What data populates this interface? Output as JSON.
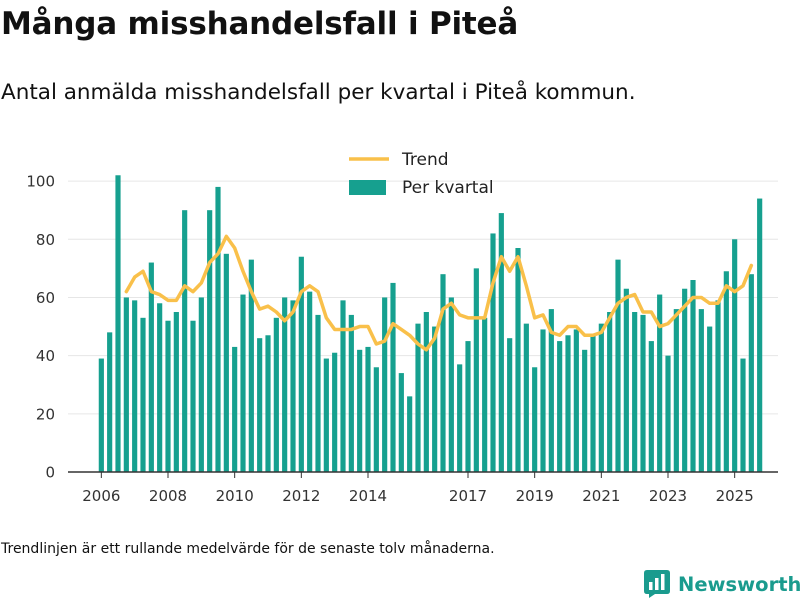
{
  "header": {
    "title": "Många misshandelsfall i Piteå",
    "subtitle": "Antal anmälda misshandelsfall per kvartal i Piteå kommun."
  },
  "footer": {
    "note": "Trendlinjen är ett rullande medelvärde för de senaste tolv månaderna.",
    "brand": "Newsworthy",
    "brand_icon": "newsworthy-logo-icon"
  },
  "colors": {
    "bars": "#16a08f",
    "trend": "#f9c04a",
    "grid": "#e6e6e6",
    "axis": "#333333",
    "brand": "#1a9b8e"
  },
  "chart_data": {
    "type": "bar",
    "x_start": 2006.0,
    "x_step": 0.25,
    "xlim": [
      2005.0,
      2026.3
    ],
    "ylim": [
      0,
      110
    ],
    "yticks": [
      0,
      20,
      40,
      60,
      80,
      100
    ],
    "xticks": [
      {
        "label": "2006",
        "value": 2006.0
      },
      {
        "label": "2008",
        "value": 2008.0
      },
      {
        "label": "2010",
        "value": 2010.0
      },
      {
        "label": "2012",
        "value": 2012.0
      },
      {
        "label": "2014",
        "value": 2014.0
      },
      {
        "label": "2017",
        "value": 2017.0
      },
      {
        "label": "2019",
        "value": 2019.0
      },
      {
        "label": "2021",
        "value": 2021.0
      },
      {
        "label": "2023",
        "value": 2023.0
      },
      {
        "label": "2025",
        "value": 2025.0
      }
    ],
    "legend_position": "top-center",
    "series": [
      {
        "name": "Per kvartal",
        "type": "bar",
        "values": [
          39,
          48,
          102,
          60,
          59,
          53,
          72,
          58,
          52,
          55,
          90,
          52,
          60,
          90,
          98,
          75,
          43,
          61,
          73,
          46,
          47,
          53,
          60,
          59,
          74,
          62,
          54,
          39,
          41,
          59,
          54,
          42,
          43,
          36,
          60,
          65,
          34,
          26,
          51,
          55,
          50,
          68,
          60,
          37,
          45,
          70,
          53,
          82,
          89,
          46,
          77,
          51,
          36,
          49,
          56,
          45,
          47,
          49,
          42,
          47,
          51,
          55,
          73,
          63,
          55,
          54,
          45,
          61,
          40,
          56,
          63,
          66,
          56,
          50,
          59,
          69,
          80,
          39,
          68,
          94
        ]
      },
      {
        "name": "Trend",
        "type": "line",
        "x": [
          2006.75,
          2007.0,
          2007.25,
          2007.5,
          2007.75,
          2008.0,
          2008.25,
          2008.5,
          2008.75,
          2009.0,
          2009.25,
          2009.5,
          2009.75,
          2010.0,
          2010.25,
          2010.5,
          2010.75,
          2011.0,
          2011.25,
          2011.5,
          2011.75,
          2012.0,
          2012.25,
          2012.5,
          2012.75,
          2013.0,
          2013.25,
          2013.5,
          2013.75,
          2014.0,
          2014.25,
          2014.5,
          2014.75,
          2015.0,
          2015.25,
          2015.5,
          2015.75,
          2016.0,
          2016.25,
          2016.5,
          2016.75,
          2017.0,
          2017.25,
          2017.5,
          2017.75,
          2018.0,
          2018.25,
          2018.5,
          2018.75,
          2019.0,
          2019.25,
          2019.5,
          2019.75,
          2020.0,
          2020.25,
          2020.5,
          2020.75,
          2021.0,
          2021.25,
          2021.5,
          2021.75,
          2022.0,
          2022.25,
          2022.5,
          2022.75,
          2023.0,
          2023.25,
          2023.5,
          2023.75,
          2024.0,
          2024.25,
          2024.5,
          2024.75,
          2025.0,
          2025.25,
          2025.5
        ],
        "values": [
          62,
          67,
          69,
          62,
          61,
          59,
          59,
          64,
          62,
          65,
          72,
          75,
          81,
          77,
          69,
          62,
          56,
          57,
          55,
          52,
          55,
          62,
          64,
          62,
          53,
          49,
          49,
          49,
          50,
          50,
          44,
          45,
          51,
          49,
          47,
          44,
          42,
          46,
          56,
          58,
          54,
          53,
          53,
          53,
          65,
          74,
          69,
          74,
          64,
          53,
          54,
          48,
          47,
          50,
          50,
          47,
          47,
          48,
          53,
          58,
          60,
          61,
          55,
          55,
          50,
          51,
          54,
          57,
          60,
          60,
          58,
          58,
          64,
          62,
          64,
          71
        ]
      }
    ]
  }
}
